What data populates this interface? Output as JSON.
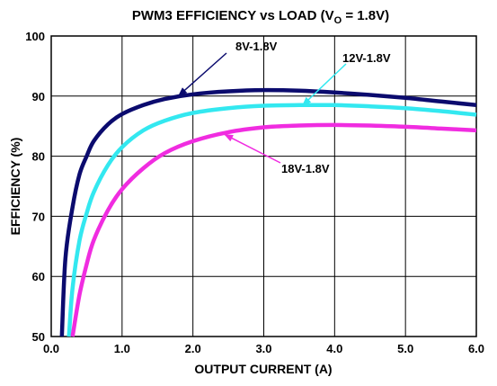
{
  "chart_data": {
    "type": "line",
    "title": "PWM3 EFFICIENCY vs LOAD (V",
    "title_sub": "O",
    "title_tail": " = 1.8V)",
    "xlabel": "OUTPUT CURRENT (A)",
    "ylabel": "EFFICIENCY (%)",
    "xlim": [
      0,
      6
    ],
    "ylim": [
      50,
      100
    ],
    "xticks": [
      "0.0",
      "1.0",
      "2.0",
      "3.0",
      "4.0",
      "5.0",
      "6.0"
    ],
    "yticks": [
      "50",
      "60",
      "70",
      "80",
      "90",
      "100"
    ],
    "grid": true,
    "series": [
      {
        "name": "8V-1.8V",
        "color": "#0b0b6e",
        "x": [
          0.15,
          0.2,
          0.3,
          0.4,
          0.5,
          0.6,
          0.8,
          1.0,
          1.3,
          1.6,
          2.0,
          2.5,
          3.0,
          3.5,
          4.0,
          4.5,
          5.0,
          5.5,
          6.0
        ],
        "y": [
          50,
          63,
          71.5,
          77,
          80,
          82.5,
          85.3,
          87,
          88.5,
          89.5,
          90.3,
          90.8,
          91,
          90.9,
          90.6,
          90.2,
          89.7,
          89.1,
          88.5
        ]
      },
      {
        "name": "12V-1.8V",
        "color": "#33e8f0",
        "x": [
          0.25,
          0.3,
          0.4,
          0.5,
          0.6,
          0.8,
          1.0,
          1.3,
          1.6,
          2.0,
          2.5,
          3.0,
          3.5,
          4.0,
          4.5,
          5.0,
          5.5,
          6.0
        ],
        "y": [
          50,
          58,
          66,
          70.5,
          74,
          78.5,
          81.5,
          84.3,
          85.9,
          87.2,
          88,
          88.4,
          88.5,
          88.5,
          88.3,
          88,
          87.5,
          86.9
        ]
      },
      {
        "name": "18V-1.8V",
        "color": "#f02ce0",
        "x": [
          0.3,
          0.4,
          0.5,
          0.6,
          0.8,
          1.0,
          1.3,
          1.6,
          2.0,
          2.5,
          3.0,
          3.5,
          4.0,
          4.5,
          5.0,
          5.5,
          6.0
        ],
        "y": [
          50,
          57,
          62,
          66,
          71,
          74.5,
          78,
          80.5,
          82.5,
          84,
          84.8,
          85.1,
          85.2,
          85.1,
          84.9,
          84.6,
          84.3
        ]
      }
    ],
    "annotations": [
      {
        "text": "8V-1.8V",
        "series": 0,
        "point_x": 1.8,
        "point_y": 90.1
      },
      {
        "text": "12V-1.8V",
        "series": 1,
        "point_x": 3.55,
        "point_y": 88.5
      },
      {
        "text": "18V-1.8V",
        "series": 2,
        "point_x": 2.45,
        "point_y": 83.6
      }
    ]
  }
}
